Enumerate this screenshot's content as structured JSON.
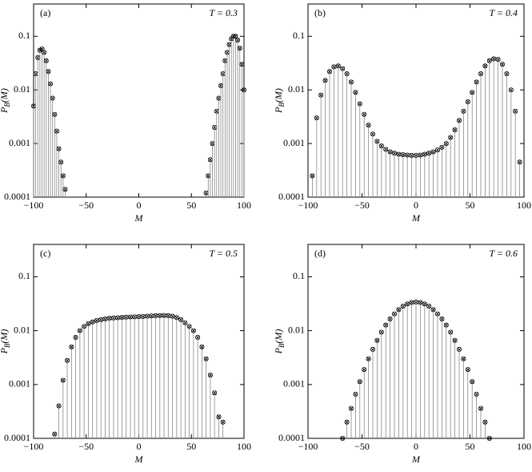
{
  "chart_data": [
    {
      "type": "stem",
      "panel_label": "(a)",
      "annotation": "T = 0.3",
      "xlabel": "M",
      "ylabel": [
        "P",
        "B",
        "(M)"
      ],
      "x": [
        -100,
        -98,
        -96,
        -94,
        -92,
        -90,
        -88,
        -86,
        -84,
        -82,
        -80,
        -78,
        -76,
        -74,
        -72,
        -70,
        64,
        66,
        68,
        70,
        72,
        74,
        76,
        78,
        80,
        82,
        84,
        86,
        88,
        90,
        92,
        94,
        96,
        98,
        100
      ],
      "values": [
        0.005,
        0.02,
        0.04,
        0.055,
        0.058,
        0.05,
        0.035,
        0.022,
        0.013,
        0.007,
        0.0035,
        0.0017,
        0.0008,
        0.00045,
        0.00025,
        0.00014,
        0.00012,
        0.00025,
        0.0005,
        0.001,
        0.002,
        0.004,
        0.007,
        0.012,
        0.02,
        0.035,
        0.05,
        0.07,
        0.09,
        0.1,
        0.1,
        0.085,
        0.06,
        0.03,
        0.01
      ],
      "color": "#888888",
      "marker_color": "#000000",
      "log_y": true,
      "xlim": [
        -100,
        100
      ],
      "ylim": [
        0.0001,
        0.4
      ],
      "xticks": [
        {
          "value": -100,
          "label": "−100"
        },
        {
          "value": -50,
          "label": "−50"
        },
        0,
        50,
        100
      ],
      "yticks": [
        0.0001,
        0.001,
        0.01,
        0.1
      ]
    },
    {
      "type": "stem",
      "panel_label": "(b)",
      "annotation": "T = 0.4",
      "xlabel": "M",
      "ylabel": [
        "P",
        "B",
        "(M)"
      ],
      "x": [
        -96,
        -92,
        -88,
        -84,
        -80,
        -76,
        -72,
        -68,
        -64,
        -60,
        -56,
        -52,
        -48,
        -44,
        -40,
        -36,
        -32,
        -28,
        -24,
        -20,
        -16,
        -12,
        -8,
        -4,
        0,
        4,
        8,
        12,
        16,
        20,
        24,
        28,
        32,
        36,
        40,
        44,
        48,
        52,
        56,
        60,
        64,
        68,
        72,
        76,
        80,
        84,
        88,
        92,
        96
      ],
      "values": [
        0.00025,
        0.003,
        0.008,
        0.015,
        0.022,
        0.027,
        0.028,
        0.025,
        0.02,
        0.014,
        0.009,
        0.0055,
        0.0035,
        0.0022,
        0.0015,
        0.0011,
        0.0009,
        0.00078,
        0.0007,
        0.00066,
        0.00063,
        0.00062,
        0.00061,
        0.0006,
        0.0006,
        0.00061,
        0.00063,
        0.00066,
        0.0007,
        0.00076,
        0.00085,
        0.001,
        0.0013,
        0.0018,
        0.0027,
        0.004,
        0.006,
        0.009,
        0.014,
        0.02,
        0.028,
        0.035,
        0.038,
        0.037,
        0.03,
        0.02,
        0.01,
        0.004,
        0.00045
      ],
      "color": "#888888",
      "marker_color": "#000000",
      "log_y": true,
      "xlim": [
        -100,
        100
      ],
      "ylim": [
        0.0001,
        0.4
      ],
      "xticks": [
        {
          "value": -100,
          "label": "−100"
        },
        {
          "value": -50,
          "label": "−50"
        },
        0,
        50,
        100
      ],
      "yticks": [
        0.0001,
        0.001,
        0.01,
        0.1
      ]
    },
    {
      "type": "stem",
      "panel_label": "(c)",
      "annotation": "T = 0.5",
      "xlabel": "M",
      "ylabel": [
        "P",
        "B",
        "(M)"
      ],
      "x": [
        -80,
        -76,
        -72,
        -68,
        -64,
        -60,
        -56,
        -52,
        -48,
        -44,
        -40,
        -36,
        -32,
        -28,
        -24,
        -20,
        -16,
        -12,
        -8,
        -4,
        0,
        4,
        8,
        12,
        16,
        20,
        24,
        28,
        32,
        36,
        40,
        44,
        48,
        52,
        56,
        60,
        64,
        68,
        72,
        76,
        80
      ],
      "values": [
        0.00012,
        0.0004,
        0.0012,
        0.0028,
        0.005,
        0.0075,
        0.01,
        0.012,
        0.0135,
        0.0145,
        0.0155,
        0.016,
        0.0165,
        0.017,
        0.0172,
        0.0174,
        0.0176,
        0.0178,
        0.018,
        0.0181,
        0.0182,
        0.0184,
        0.0186,
        0.0188,
        0.019,
        0.0191,
        0.0192,
        0.019,
        0.0185,
        0.0175,
        0.016,
        0.014,
        0.012,
        0.01,
        0.0075,
        0.005,
        0.003,
        0.0015,
        0.0007,
        0.00025,
        0.0002
      ],
      "color": "#888888",
      "marker_color": "#000000",
      "log_y": true,
      "xlim": [
        -100,
        100
      ],
      "ylim": [
        0.0001,
        0.4
      ],
      "xticks": [
        {
          "value": -100,
          "label": "−100"
        },
        {
          "value": -50,
          "label": "−50"
        },
        0,
        50,
        100
      ],
      "yticks": [
        0.0001,
        0.001,
        0.01,
        0.1
      ]
    },
    {
      "type": "stem",
      "panel_label": "(d)",
      "annotation": "T = 0.6",
      "xlabel": "M",
      "ylabel": [
        "P",
        "B",
        "(M)"
      ],
      "x": [
        -68,
        -64,
        -60,
        -56,
        -52,
        -48,
        -44,
        -40,
        -36,
        -32,
        -28,
        -24,
        -20,
        -16,
        -12,
        -8,
        -4,
        0,
        4,
        8,
        12,
        16,
        20,
        24,
        28,
        32,
        36,
        40,
        44,
        48,
        52,
        56,
        60,
        64,
        68
      ],
      "values": [
        0.0001,
        0.0002,
        0.00036,
        0.00066,
        0.00113,
        0.0019,
        0.003,
        0.0045,
        0.0066,
        0.0094,
        0.0127,
        0.0165,
        0.0205,
        0.0246,
        0.0284,
        0.0314,
        0.0333,
        0.034,
        0.0333,
        0.0314,
        0.0284,
        0.0246,
        0.0205,
        0.0165,
        0.0127,
        0.0094,
        0.0066,
        0.0045,
        0.003,
        0.0019,
        0.00113,
        0.00066,
        0.00036,
        0.0002,
        0.0001
      ],
      "color": "#888888",
      "marker_color": "#000000",
      "log_y": true,
      "xlim": [
        -100,
        100
      ],
      "ylim": [
        0.0001,
        0.4
      ],
      "xticks": [
        {
          "value": -100,
          "label": "−100"
        },
        {
          "value": -50,
          "label": "−50"
        },
        0,
        50,
        100
      ],
      "yticks": [
        0.0001,
        0.001,
        0.01,
        0.1
      ]
    }
  ]
}
